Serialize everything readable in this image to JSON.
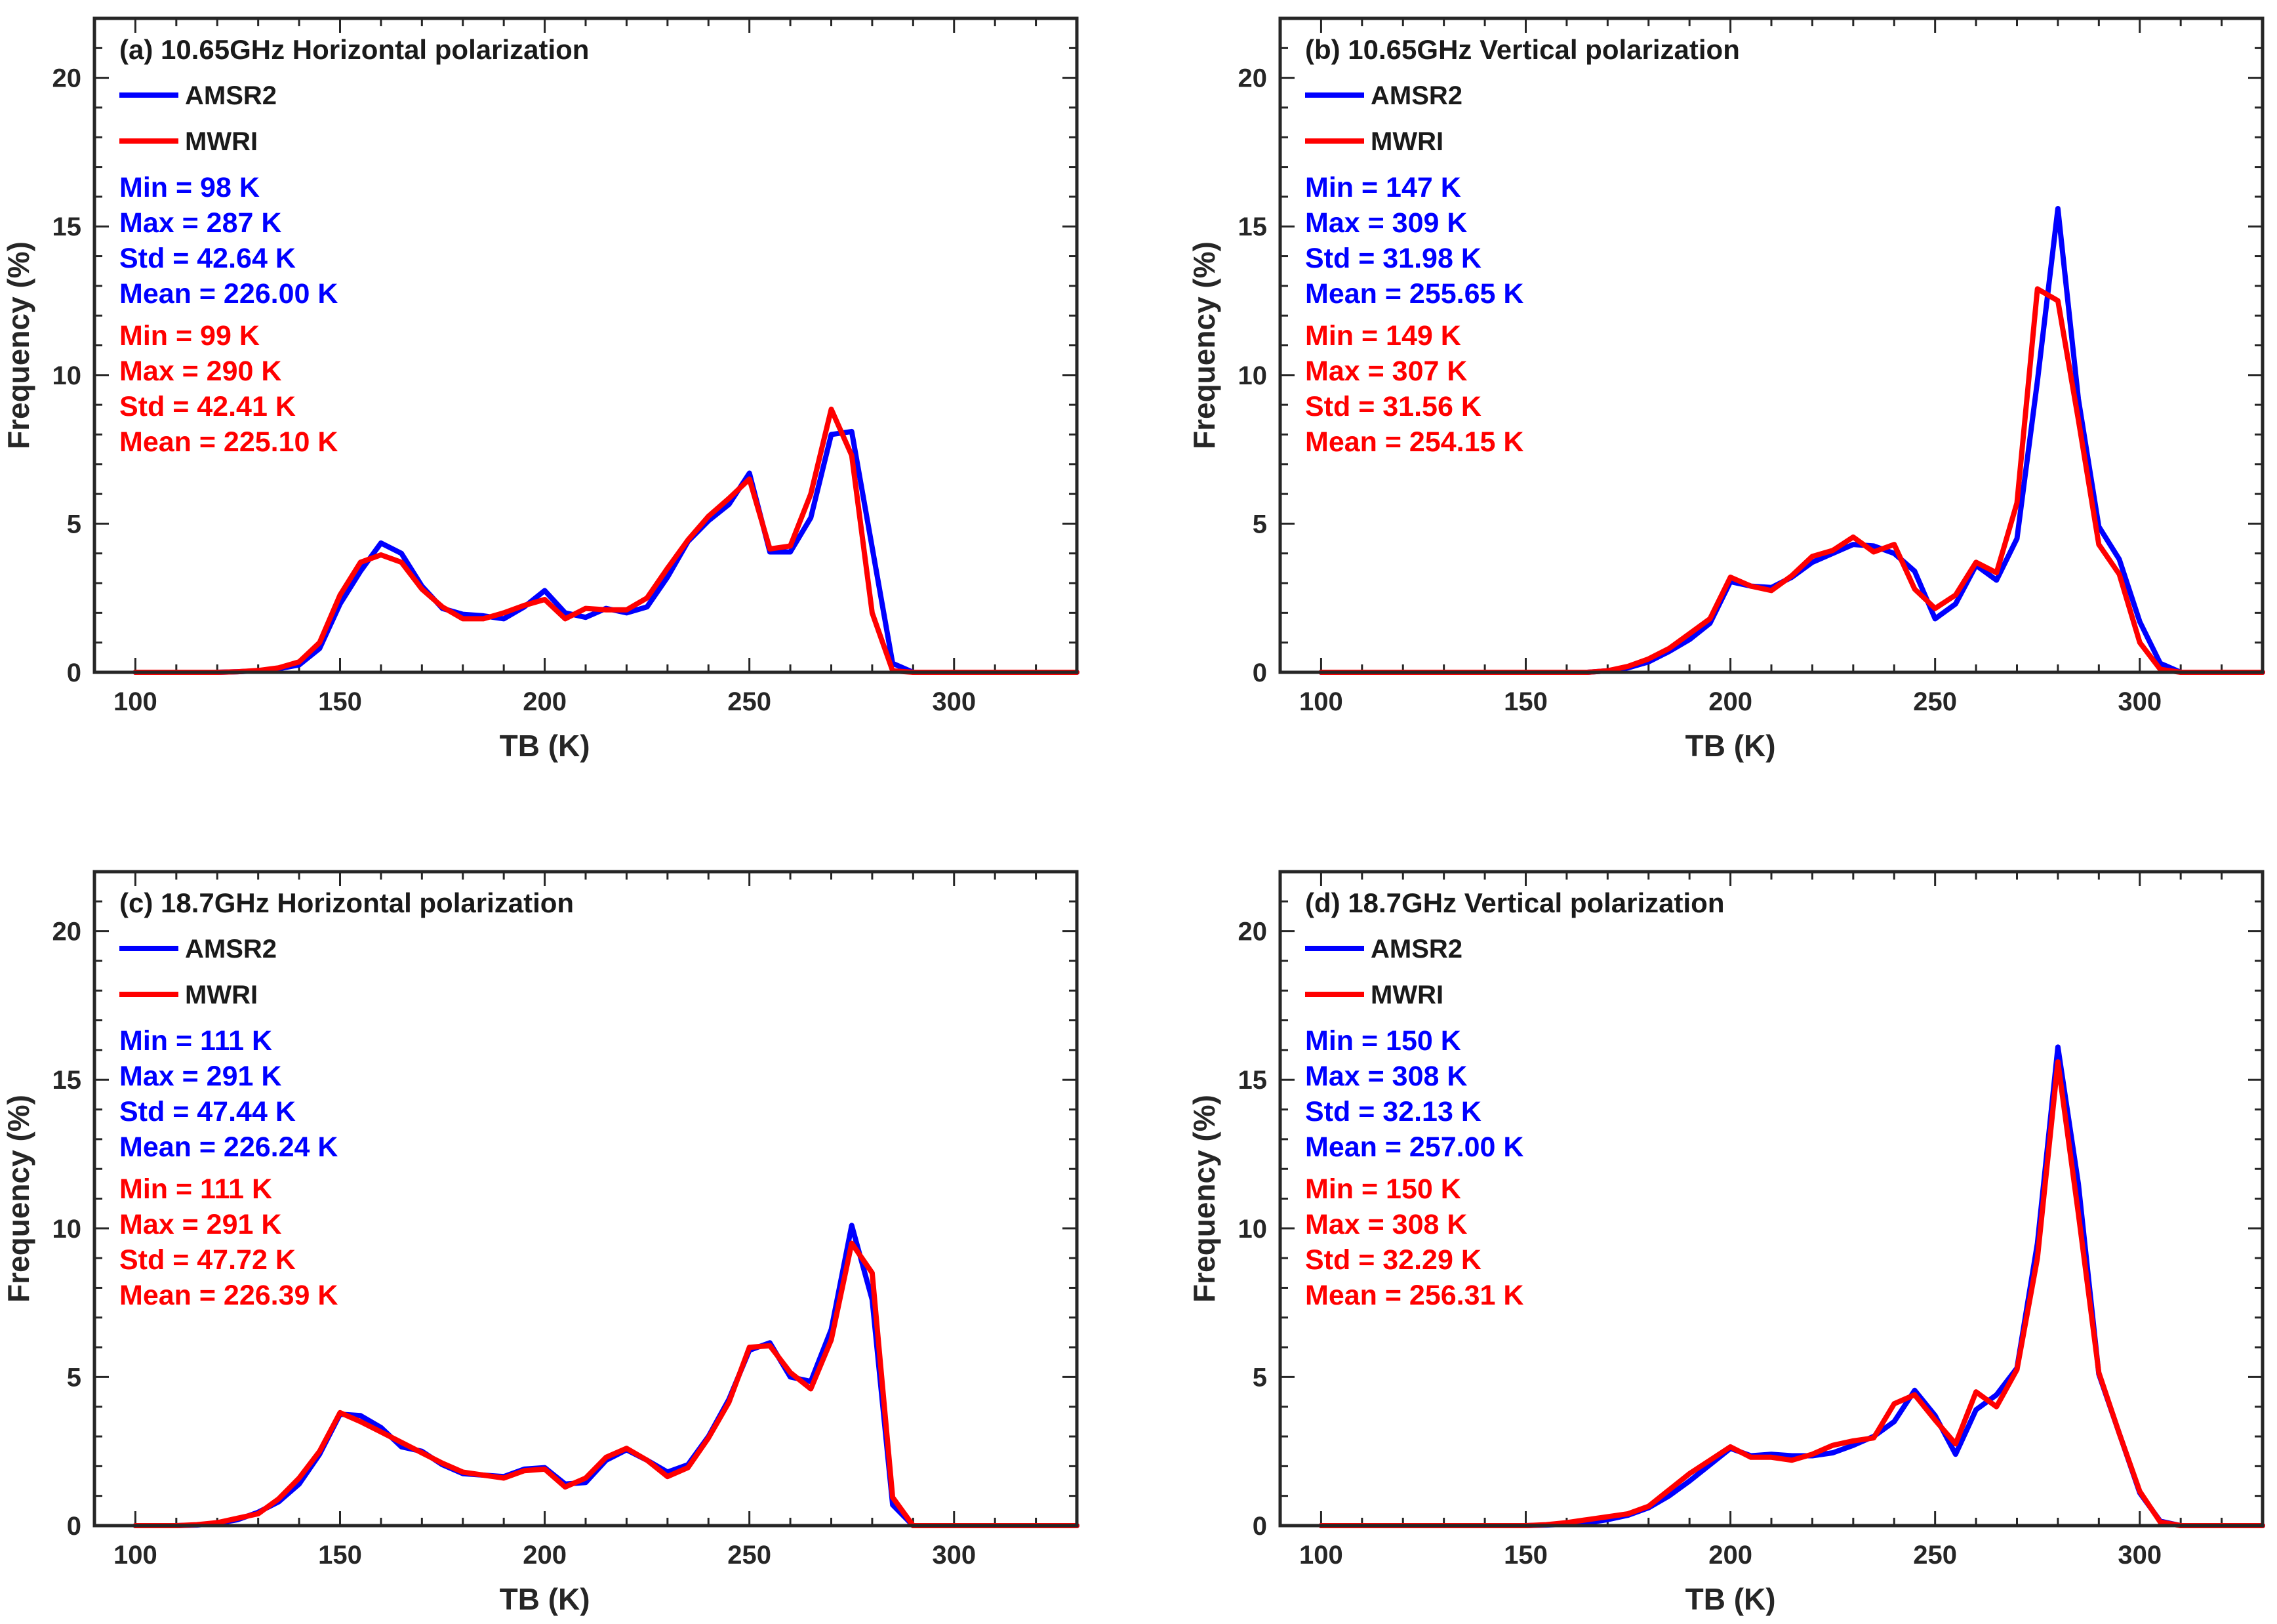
{
  "colors": {
    "amsr2": "#0000ff",
    "mwri": "#ff0000",
    "axis": "#262626"
  },
  "chart_data": [
    {
      "type": "line",
      "title": "(a) 10.65GHz Horizontal polarization",
      "xlabel": "TB (K)",
      "ylabel": "Frequency (%)",
      "xlim": [
        90,
        330
      ],
      "ylim": [
        0,
        22
      ],
      "xticks": [
        100,
        150,
        200,
        250,
        300
      ],
      "yticks": [
        0,
        5,
        10,
        15,
        20
      ],
      "legend": "top-left",
      "series": [
        {
          "name": "AMSR2",
          "color": "#0000ff",
          "stats": [
            "Min = 98 K",
            "Max = 287 K",
            "Std = 42.64 K",
            "Mean = 226.00 K"
          ],
          "x": [
            100,
            105,
            110,
            115,
            120,
            125,
            130,
            135,
            140,
            145,
            150,
            155,
            160,
            165,
            170,
            175,
            180,
            185,
            190,
            195,
            200,
            205,
            210,
            215,
            220,
            225,
            230,
            235,
            240,
            245,
            250,
            255,
            260,
            265,
            270,
            275,
            280,
            285,
            290,
            295,
            300,
            305,
            310,
            315,
            320,
            325,
            330
          ],
          "y": [
            0,
            0,
            0,
            0,
            0,
            0.02,
            0.05,
            0.12,
            0.25,
            0.8,
            2.3,
            3.4,
            4.35,
            4.0,
            2.9,
            2.15,
            1.95,
            1.9,
            1.8,
            2.2,
            2.75,
            2.0,
            1.85,
            2.15,
            2.0,
            2.2,
            3.2,
            4.4,
            5.1,
            5.65,
            6.7,
            4.05,
            4.05,
            5.2,
            8.0,
            8.1,
            4.2,
            0.3,
            0,
            0,
            0,
            0,
            0,
            0,
            0,
            0,
            0
          ]
        },
        {
          "name": "MWRI",
          "color": "#ff0000",
          "stats": [
            "Min = 99 K",
            "Max = 290 K",
            "Std = 42.41 K",
            "Mean = 225.10 K"
          ],
          "x": [
            100,
            105,
            110,
            115,
            120,
            125,
            130,
            135,
            140,
            145,
            150,
            155,
            160,
            165,
            170,
            175,
            180,
            185,
            190,
            195,
            200,
            205,
            210,
            215,
            220,
            225,
            230,
            235,
            240,
            245,
            250,
            255,
            260,
            265,
            270,
            275,
            280,
            285,
            290,
            295,
            300,
            305,
            310,
            315,
            320,
            325,
            330
          ],
          "y": [
            0,
            0,
            0,
            0,
            0,
            0.02,
            0.06,
            0.15,
            0.35,
            1.0,
            2.6,
            3.7,
            3.95,
            3.7,
            2.8,
            2.2,
            1.8,
            1.8,
            2.0,
            2.25,
            2.45,
            1.8,
            2.15,
            2.1,
            2.1,
            2.5,
            3.5,
            4.45,
            5.25,
            5.85,
            6.5,
            4.15,
            4.25,
            6.0,
            8.85,
            7.3,
            2.0,
            0.05,
            0,
            0,
            0,
            0,
            0,
            0,
            0,
            0,
            0
          ]
        }
      ]
    },
    {
      "type": "line",
      "title": "(b) 10.65GHz Vertical polarization",
      "xlabel": "TB (K)",
      "ylabel": "Frequency (%)",
      "xlim": [
        90,
        330
      ],
      "ylim": [
        0,
        22
      ],
      "xticks": [
        100,
        150,
        200,
        250,
        300
      ],
      "yticks": [
        0,
        5,
        10,
        15,
        20
      ],
      "legend": "top-left",
      "series": [
        {
          "name": "AMSR2",
          "color": "#0000ff",
          "stats": [
            "Min = 147 K",
            "Max = 309 K",
            "Std = 31.98 K",
            "Mean = 255.65 K"
          ],
          "x": [
            100,
            110,
            120,
            130,
            140,
            150,
            160,
            165,
            170,
            175,
            180,
            185,
            190,
            195,
            200,
            205,
            210,
            215,
            220,
            225,
            230,
            235,
            240,
            245,
            250,
            255,
            260,
            265,
            270,
            275,
            280,
            285,
            290,
            295,
            300,
            305,
            310,
            315,
            320,
            325,
            330
          ],
          "y": [
            0,
            0,
            0,
            0,
            0,
            0,
            0,
            0,
            0.05,
            0.15,
            0.35,
            0.7,
            1.1,
            1.65,
            3.05,
            2.9,
            2.85,
            3.2,
            3.7,
            4.0,
            4.3,
            4.25,
            4.0,
            3.4,
            1.8,
            2.3,
            3.6,
            3.1,
            4.5,
            9.8,
            15.6,
            9.2,
            4.9,
            3.8,
            1.7,
            0.3,
            0,
            0,
            0,
            0,
            0
          ]
        },
        {
          "name": "MWRI",
          "color": "#ff0000",
          "stats": [
            "Min = 149 K",
            "Max = 307 K",
            "Std = 31.56 K",
            "Mean = 254.15 K"
          ],
          "x": [
            100,
            110,
            120,
            130,
            140,
            150,
            160,
            165,
            170,
            175,
            180,
            185,
            190,
            195,
            200,
            205,
            210,
            215,
            220,
            225,
            230,
            235,
            240,
            245,
            250,
            255,
            260,
            265,
            270,
            275,
            280,
            285,
            290,
            295,
            300,
            305,
            310,
            315,
            320,
            325,
            330
          ],
          "y": [
            0,
            0,
            0,
            0,
            0,
            0,
            0,
            0,
            0.05,
            0.2,
            0.45,
            0.8,
            1.3,
            1.8,
            3.2,
            2.9,
            2.75,
            3.25,
            3.9,
            4.1,
            4.55,
            4.05,
            4.3,
            2.8,
            2.15,
            2.6,
            3.7,
            3.35,
            5.7,
            12.9,
            12.5,
            8.5,
            4.3,
            3.3,
            1.0,
            0.1,
            0,
            0,
            0,
            0,
            0
          ]
        }
      ]
    },
    {
      "type": "line",
      "title": "(c) 18.7GHz Horizontal polarization",
      "xlabel": "TB (K)",
      "ylabel": "Frequency (%)",
      "xlim": [
        90,
        330
      ],
      "ylim": [
        0,
        22
      ],
      "xticks": [
        100,
        150,
        200,
        250,
        300
      ],
      "yticks": [
        0,
        5,
        10,
        15,
        20
      ],
      "legend": "top-left",
      "series": [
        {
          "name": "AMSR2",
          "color": "#0000ff",
          "stats": [
            "Min = 111 K",
            "Max = 291 K",
            "Std = 47.44 K",
            "Mean = 226.24 K"
          ],
          "x": [
            100,
            105,
            110,
            115,
            120,
            125,
            130,
            135,
            140,
            145,
            150,
            155,
            160,
            165,
            170,
            175,
            180,
            185,
            190,
            195,
            200,
            205,
            210,
            215,
            220,
            225,
            230,
            235,
            240,
            245,
            250,
            255,
            260,
            265,
            270,
            275,
            280,
            285,
            290,
            295,
            300,
            305,
            310,
            315,
            320,
            325,
            330
          ],
          "y": [
            0,
            0,
            0,
            0.02,
            0.08,
            0.2,
            0.45,
            0.8,
            1.4,
            2.4,
            3.75,
            3.7,
            3.3,
            2.65,
            2.5,
            2.05,
            1.75,
            1.7,
            1.65,
            1.9,
            1.95,
            1.4,
            1.45,
            2.2,
            2.55,
            2.2,
            1.8,
            2.05,
            3.0,
            4.25,
            5.9,
            6.15,
            5.0,
            4.85,
            6.6,
            10.1,
            7.6,
            0.7,
            0,
            0,
            0,
            0,
            0,
            0,
            0,
            0,
            0
          ]
        },
        {
          "name": "MWRI",
          "color": "#ff0000",
          "stats": [
            "Min = 111 K",
            "Max = 291 K",
            "Std = 47.72 K",
            "Mean = 226.39 K"
          ],
          "x": [
            100,
            105,
            110,
            115,
            120,
            125,
            130,
            135,
            140,
            145,
            150,
            155,
            160,
            165,
            170,
            175,
            180,
            185,
            190,
            195,
            200,
            205,
            210,
            215,
            220,
            225,
            230,
            235,
            240,
            245,
            250,
            255,
            260,
            265,
            270,
            275,
            280,
            285,
            290,
            295,
            300,
            305,
            310,
            315,
            320,
            325,
            330
          ],
          "y": [
            0,
            0,
            0,
            0.03,
            0.1,
            0.25,
            0.4,
            0.9,
            1.6,
            2.5,
            3.8,
            3.5,
            3.15,
            2.8,
            2.45,
            2.1,
            1.8,
            1.7,
            1.6,
            1.85,
            1.9,
            1.3,
            1.6,
            2.3,
            2.6,
            2.2,
            1.65,
            1.95,
            2.95,
            4.15,
            6.0,
            6.05,
            5.15,
            4.6,
            6.25,
            9.5,
            8.5,
            0.95,
            0,
            0,
            0,
            0,
            0,
            0,
            0,
            0,
            0
          ]
        }
      ]
    },
    {
      "type": "line",
      "title": "(d) 18.7GHz Vertical polarization",
      "xlabel": "TB (K)",
      "ylabel": "Frequency (%)",
      "xlim": [
        90,
        330
      ],
      "ylim": [
        0,
        22
      ],
      "xticks": [
        100,
        150,
        200,
        250,
        300
      ],
      "yticks": [
        0,
        5,
        10,
        15,
        20
      ],
      "legend": "top-left",
      "series": [
        {
          "name": "AMSR2",
          "color": "#0000ff",
          "stats": [
            "Min = 150 K",
            "Max = 308 K",
            "Std = 32.13 K",
            "Mean = 257.00 K"
          ],
          "x": [
            100,
            110,
            120,
            130,
            140,
            150,
            155,
            160,
            165,
            170,
            175,
            180,
            185,
            190,
            195,
            200,
            205,
            210,
            215,
            220,
            225,
            230,
            235,
            240,
            245,
            250,
            255,
            260,
            265,
            270,
            275,
            280,
            285,
            290,
            295,
            300,
            305,
            310,
            315,
            320,
            325,
            330
          ],
          "y": [
            0,
            0,
            0,
            0,
            0,
            0,
            0.02,
            0.05,
            0.1,
            0.2,
            0.35,
            0.6,
            1.0,
            1.5,
            2.05,
            2.6,
            2.35,
            2.4,
            2.35,
            2.35,
            2.45,
            2.7,
            3.0,
            3.5,
            4.55,
            3.7,
            2.4,
            3.9,
            4.4,
            5.3,
            9.5,
            16.1,
            11.5,
            5.1,
            3.1,
            1.1,
            0.15,
            0,
            0,
            0,
            0,
            0
          ]
        },
        {
          "name": "MWRI",
          "color": "#ff0000",
          "stats": [
            "Min = 150 K",
            "Max = 308 K",
            "Std = 32.29 K",
            "Mean = 256.31 K"
          ],
          "x": [
            100,
            110,
            120,
            130,
            140,
            150,
            155,
            160,
            165,
            170,
            175,
            180,
            185,
            190,
            195,
            200,
            205,
            210,
            215,
            220,
            225,
            230,
            235,
            240,
            245,
            250,
            255,
            260,
            265,
            270,
            275,
            280,
            285,
            290,
            295,
            300,
            305,
            310,
            315,
            320,
            325,
            330
          ],
          "y": [
            0,
            0,
            0,
            0,
            0,
            0,
            0.03,
            0.1,
            0.2,
            0.3,
            0.4,
            0.65,
            1.2,
            1.75,
            2.2,
            2.65,
            2.3,
            2.3,
            2.2,
            2.4,
            2.7,
            2.85,
            2.95,
            4.1,
            4.4,
            3.55,
            2.75,
            4.5,
            4.0,
            5.25,
            9.0,
            15.6,
            10.5,
            5.15,
            3.1,
            1.15,
            0.12,
            0,
            0,
            0,
            0,
            0
          ]
        }
      ]
    }
  ]
}
